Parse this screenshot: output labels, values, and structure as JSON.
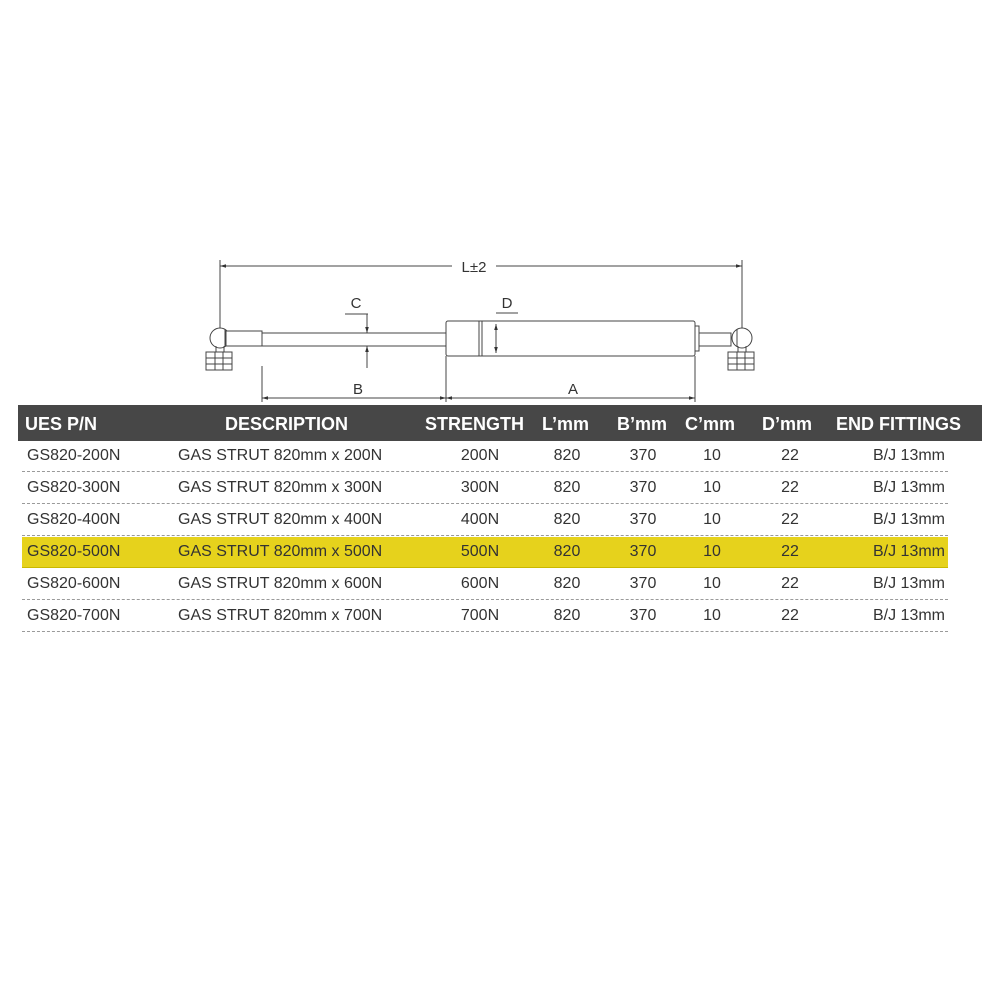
{
  "diagram": {
    "length_label": "L±2",
    "c_label": "C",
    "d_label": "D",
    "b_label": "B",
    "a_label": "A"
  },
  "table": {
    "headers": [
      "UES P/N",
      "DESCRIPTION",
      "STRENGTH",
      "L’mm",
      "B’mm",
      "C’mm",
      "D’mm",
      "END FITTINGS"
    ],
    "highlight_color": "#e6d21c",
    "header_color": "#474747",
    "rows": [
      [
        "GS820-200N",
        "GAS STRUT 820mm x 200N",
        "200N",
        "820",
        "370",
        "10",
        "22",
        "B/J 13mm"
      ],
      [
        "GS820-300N",
        "GAS STRUT 820mm x 300N",
        "300N",
        "820",
        "370",
        "10",
        "22",
        "B/J 13mm"
      ],
      [
        "GS820-400N",
        "GAS STRUT 820mm x 400N",
        "400N",
        "820",
        "370",
        "10",
        "22",
        "B/J 13mm"
      ],
      [
        "GS820-500N",
        "GAS STRUT 820mm x 500N",
        "500N",
        "820",
        "370",
        "10",
        "22",
        "B/J 13mm"
      ],
      [
        "GS820-600N",
        "GAS STRUT 820mm x 600N",
        "600N",
        "820",
        "370",
        "10",
        "22",
        "B/J 13mm"
      ],
      [
        "GS820-700N",
        "GAS STRUT 820mm x 700N",
        "700N",
        "820",
        "370",
        "10",
        "22",
        "B/J 13mm"
      ]
    ],
    "highlighted_row": 3
  }
}
